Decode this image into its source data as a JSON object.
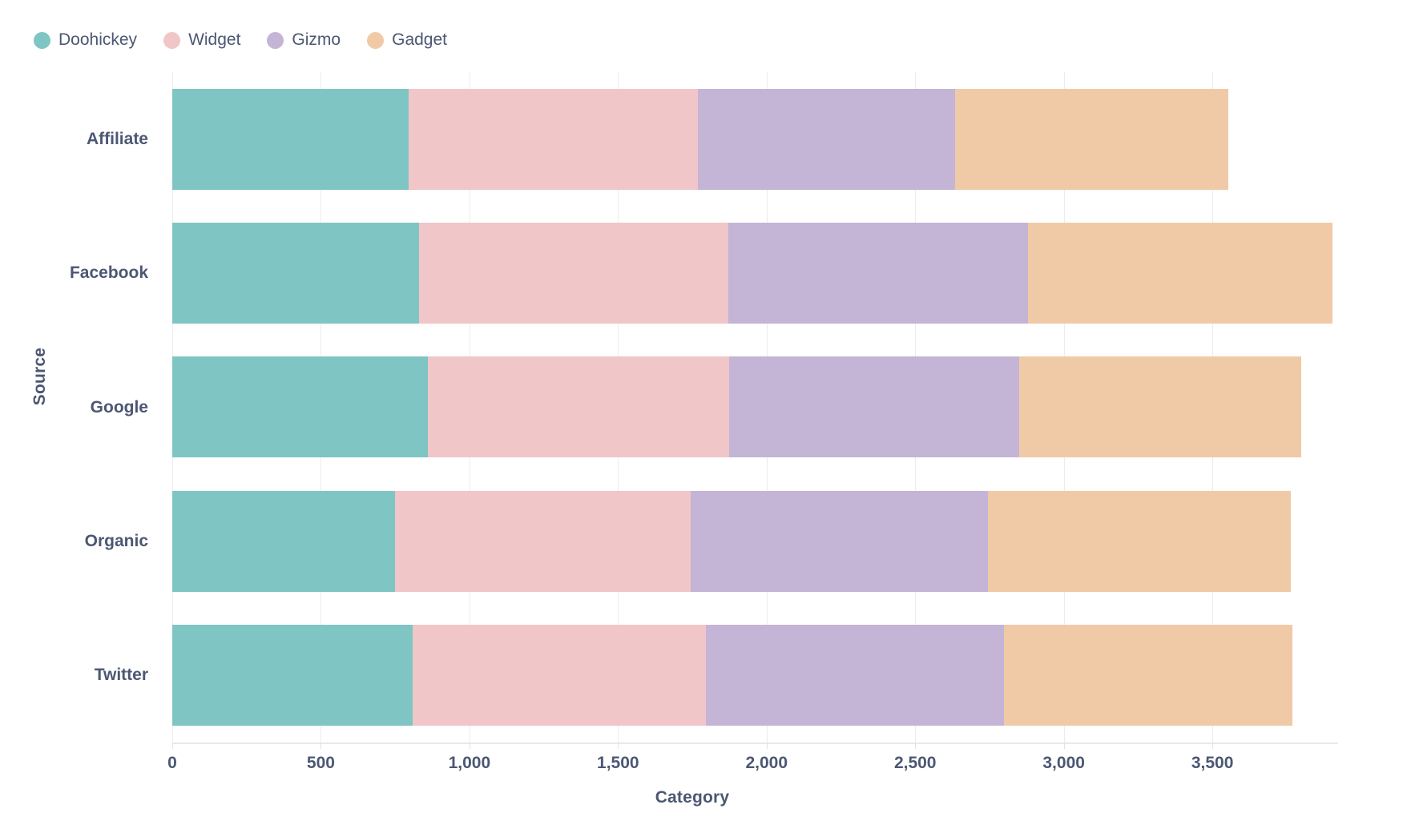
{
  "chart_data": {
    "type": "bar",
    "orientation": "horizontal",
    "stacked": true,
    "xlabel": "Category",
    "ylabel": "Source",
    "categories": [
      "Affiliate",
      "Facebook",
      "Google",
      "Organic",
      "Twitter"
    ],
    "series": [
      {
        "name": "Doohickey",
        "color": "#7FC5C3",
        "values": [
          795,
          830,
          860,
          750,
          810
        ]
      },
      {
        "name": "Widget",
        "color": "#F0C6C8",
        "values": [
          975,
          1040,
          1015,
          995,
          985
        ]
      },
      {
        "name": "Gizmo",
        "color": "#C4B4D6",
        "values": [
          865,
          1010,
          975,
          1000,
          1005
        ]
      },
      {
        "name": "Gadget",
        "color": "#F0CAA6",
        "values": [
          920,
          1025,
          950,
          1020,
          970
        ]
      }
    ],
    "totals": [
      3555,
      3905,
      3800,
      3765,
      3770
    ],
    "x_ticks": [
      0,
      500,
      1000,
      1500,
      2000,
      2500,
      3000,
      3500
    ],
    "x_tick_labels": [
      "0",
      "500",
      "1,000",
      "1,500",
      "2,000",
      "2,500",
      "3,000",
      "3,500"
    ],
    "xlim": [
      0,
      3923
    ],
    "grid": true,
    "legend_position": "top-left"
  },
  "colors": {
    "text": "#4C5773",
    "gridline": "#ECECEC",
    "axis_line": "#E7E9EC",
    "background": "#FFFFFF"
  }
}
